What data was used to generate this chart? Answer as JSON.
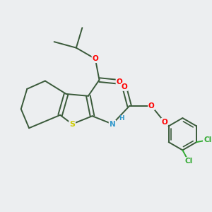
{
  "background_color": "#eceef0",
  "bond_color": "#3a5a3a",
  "atom_colors": {
    "O": "#ff0000",
    "N": "#3399cc",
    "S": "#cccc00",
    "Cl": "#33aa33",
    "H": "#888888",
    "C": "#3a5a3a"
  }
}
